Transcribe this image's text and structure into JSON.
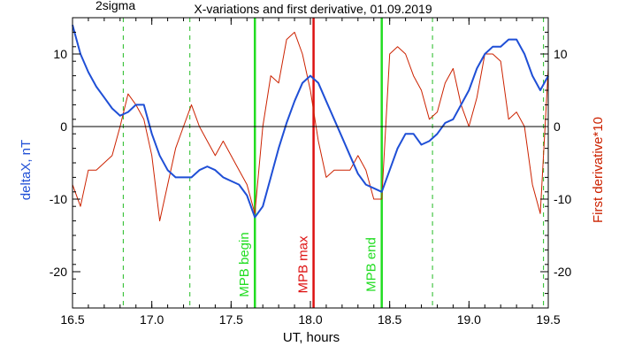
{
  "chart_data": {
    "type": "line",
    "title": "X-variations and first derivative, 01.09.2019",
    "corner_label": "2sigma",
    "xlabel": "UT, hours",
    "ylabel_left": "deltaX, nT",
    "ylabel_right": "First derivative*10",
    "xlim": [
      16.5,
      19.5
    ],
    "ylim": [
      -25,
      15
    ],
    "x_ticks": [
      16.5,
      17.0,
      17.5,
      18.0,
      18.5,
      19.0,
      19.5
    ],
    "x_tick_labels": [
      "16.5",
      "17.0",
      "17.5",
      "18.0",
      "18.5",
      "19.0",
      "19.5"
    ],
    "y_ticks": [
      -20,
      -10,
      0,
      10
    ],
    "y_tick_labels": [
      "-20",
      "-10",
      "0",
      "10"
    ],
    "zero_line": 0,
    "grid": false,
    "colors": {
      "deltaX": "#1f4fd6",
      "derivative": "#cc2200",
      "mpb_edges": "#22dd22",
      "mpb_max": "#dd1111",
      "sigma_lines": "#22bb22"
    },
    "vertical_lines": [
      {
        "x": 16.82,
        "style": "dashed",
        "color": "#22bb22",
        "label": ""
      },
      {
        "x": 17.24,
        "style": "dashed",
        "color": "#22bb22",
        "label": ""
      },
      {
        "x": 17.65,
        "style": "solid",
        "color": "#22dd22",
        "label": "MPB begin"
      },
      {
        "x": 18.02,
        "style": "solid",
        "color": "#dd1111",
        "label": "MPB max"
      },
      {
        "x": 18.45,
        "style": "solid",
        "color": "#22dd22",
        "label": "MPB end"
      },
      {
        "x": 18.77,
        "style": "dashed",
        "color": "#22bb22",
        "label": ""
      },
      {
        "x": 19.47,
        "style": "dashed",
        "color": "#22bb22",
        "label": ""
      }
    ],
    "series": [
      {
        "key": "deltaX",
        "x": [
          16.5,
          16.55,
          16.6,
          16.65,
          16.7,
          16.75,
          16.8,
          16.85,
          16.9,
          16.95,
          17.0,
          17.05,
          17.1,
          17.15,
          17.2,
          17.25,
          17.3,
          17.35,
          17.4,
          17.45,
          17.5,
          17.55,
          17.6,
          17.65,
          17.7,
          17.75,
          17.8,
          17.85,
          17.9,
          17.95,
          18.0,
          18.05,
          18.1,
          18.15,
          18.2,
          18.25,
          18.3,
          18.35,
          18.4,
          18.45,
          18.5,
          18.55,
          18.6,
          18.65,
          18.7,
          18.75,
          18.8,
          18.85,
          18.9,
          18.95,
          19.0,
          19.05,
          19.1,
          19.15,
          19.2,
          19.25,
          19.3,
          19.35,
          19.4,
          19.45,
          19.5
        ],
        "y": [
          14,
          10,
          7.5,
          5.5,
          4,
          2.5,
          1.5,
          2,
          3,
          3,
          -1,
          -4,
          -6,
          -7,
          -7,
          -7,
          -6,
          -5.5,
          -6,
          -7,
          -7.5,
          -8,
          -9.5,
          -12.5,
          -11,
          -7,
          -3,
          0.5,
          3.5,
          6,
          7,
          6,
          3.5,
          1,
          -1.5,
          -4,
          -6.5,
          -8,
          -8.5,
          -9,
          -6,
          -3,
          -1,
          -1,
          -2.5,
          -2,
          -1,
          0.5,
          1,
          3,
          5,
          8,
          10,
          11,
          11,
          12,
          12,
          10,
          7,
          5,
          7
        ]
      },
      {
        "key": "derivative",
        "x": [
          16.5,
          16.55,
          16.6,
          16.65,
          16.7,
          16.75,
          16.8,
          16.85,
          16.9,
          16.95,
          17.0,
          17.05,
          17.1,
          17.15,
          17.2,
          17.25,
          17.3,
          17.35,
          17.4,
          17.45,
          17.5,
          17.55,
          17.6,
          17.65,
          17.7,
          17.75,
          17.8,
          17.85,
          17.9,
          17.95,
          18.0,
          18.05,
          18.1,
          18.15,
          18.2,
          18.25,
          18.3,
          18.35,
          18.4,
          18.45,
          18.5,
          18.55,
          18.6,
          18.65,
          18.7,
          18.75,
          18.8,
          18.85,
          18.9,
          18.95,
          19.0,
          19.05,
          19.1,
          19.15,
          19.2,
          19.25,
          19.3,
          19.35,
          19.4,
          19.45,
          19.5
        ],
        "y": [
          -8,
          -11,
          -6,
          -6,
          -5,
          -4,
          0,
          4.5,
          3,
          1,
          -4,
          -13,
          -8,
          -3,
          0,
          3,
          0,
          -2,
          -4,
          -2,
          -4,
          -6,
          -8,
          -12,
          0,
          7,
          6,
          12,
          13,
          10,
          5,
          -2,
          -7,
          -6,
          -6,
          -6,
          -4,
          -6,
          -10,
          -10,
          10,
          11,
          10,
          7,
          5,
          1,
          2,
          6,
          8,
          3,
          0,
          4,
          10,
          10,
          9,
          1,
          2,
          0,
          -8,
          -12,
          8
        ]
      }
    ]
  }
}
